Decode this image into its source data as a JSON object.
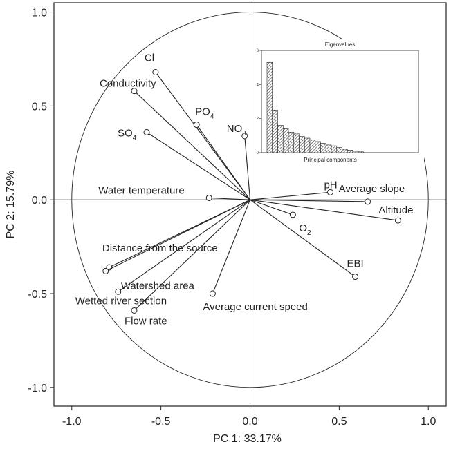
{
  "chart_data": [
    {
      "type": "scatter",
      "subtype": "pca-biplot",
      "xlabel": "PC 1: 33.17%",
      "ylabel": "PC 2: 15.79%",
      "xlim": [
        -1.1,
        1.1
      ],
      "ylim": [
        -1.1,
        1.05
      ],
      "xticks": [
        "-1.0",
        "-0.5",
        "0.0",
        "0.5",
        "1.0"
      ],
      "yticks": [
        "-1.0",
        "-0.5",
        "0.0",
        "0.5",
        "1.0"
      ],
      "unit_circle": true,
      "grid": false,
      "points": [
        {
          "label": "Cl",
          "x": -0.53,
          "y": 0.68
        },
        {
          "label": "Conductivity",
          "x": -0.65,
          "y": 0.58
        },
        {
          "label": "PO",
          "sub": "4",
          "x": -0.3,
          "y": 0.4
        },
        {
          "label": "NO",
          "sub": "3",
          "x": -0.03,
          "y": 0.34
        },
        {
          "label": "SO",
          "sub": "4",
          "x": -0.58,
          "y": 0.36
        },
        {
          "label": "Water temperature",
          "x": -0.23,
          "y": 0.01
        },
        {
          "label": "pH",
          "x": 0.45,
          "y": 0.04
        },
        {
          "label": "Average slope",
          "x": 0.66,
          "y": -0.01
        },
        {
          "label": "Altitude",
          "x": 0.83,
          "y": -0.11
        },
        {
          "label": "O",
          "sub": "2",
          "x": 0.24,
          "y": -0.08
        },
        {
          "label": "EBI",
          "x": 0.59,
          "y": -0.41
        },
        {
          "label": "Distance from the source",
          "x": -0.79,
          "y": -0.36
        },
        {
          "label": "Watershed area",
          "x": -0.81,
          "y": -0.38
        },
        {
          "label": "Wetted river section",
          "x": -0.74,
          "y": -0.49
        },
        {
          "label": "Flow rate",
          "x": -0.65,
          "y": -0.59
        },
        {
          "label": "Average current speed",
          "x": -0.21,
          "y": -0.5
        }
      ]
    },
    {
      "type": "bar",
      "title": "Eigenvalues",
      "xlabel": "Principal components",
      "ylim": [
        0,
        6
      ],
      "yticks": [
        "0",
        "2",
        "4",
        "6"
      ],
      "values": [
        5.3,
        2.5,
        1.6,
        1.4,
        1.2,
        1.1,
        0.95,
        0.85,
        0.75,
        0.65,
        0.55,
        0.45,
        0.4,
        0.3,
        0.2,
        0.15,
        0.08,
        0.05
      ]
    }
  ]
}
